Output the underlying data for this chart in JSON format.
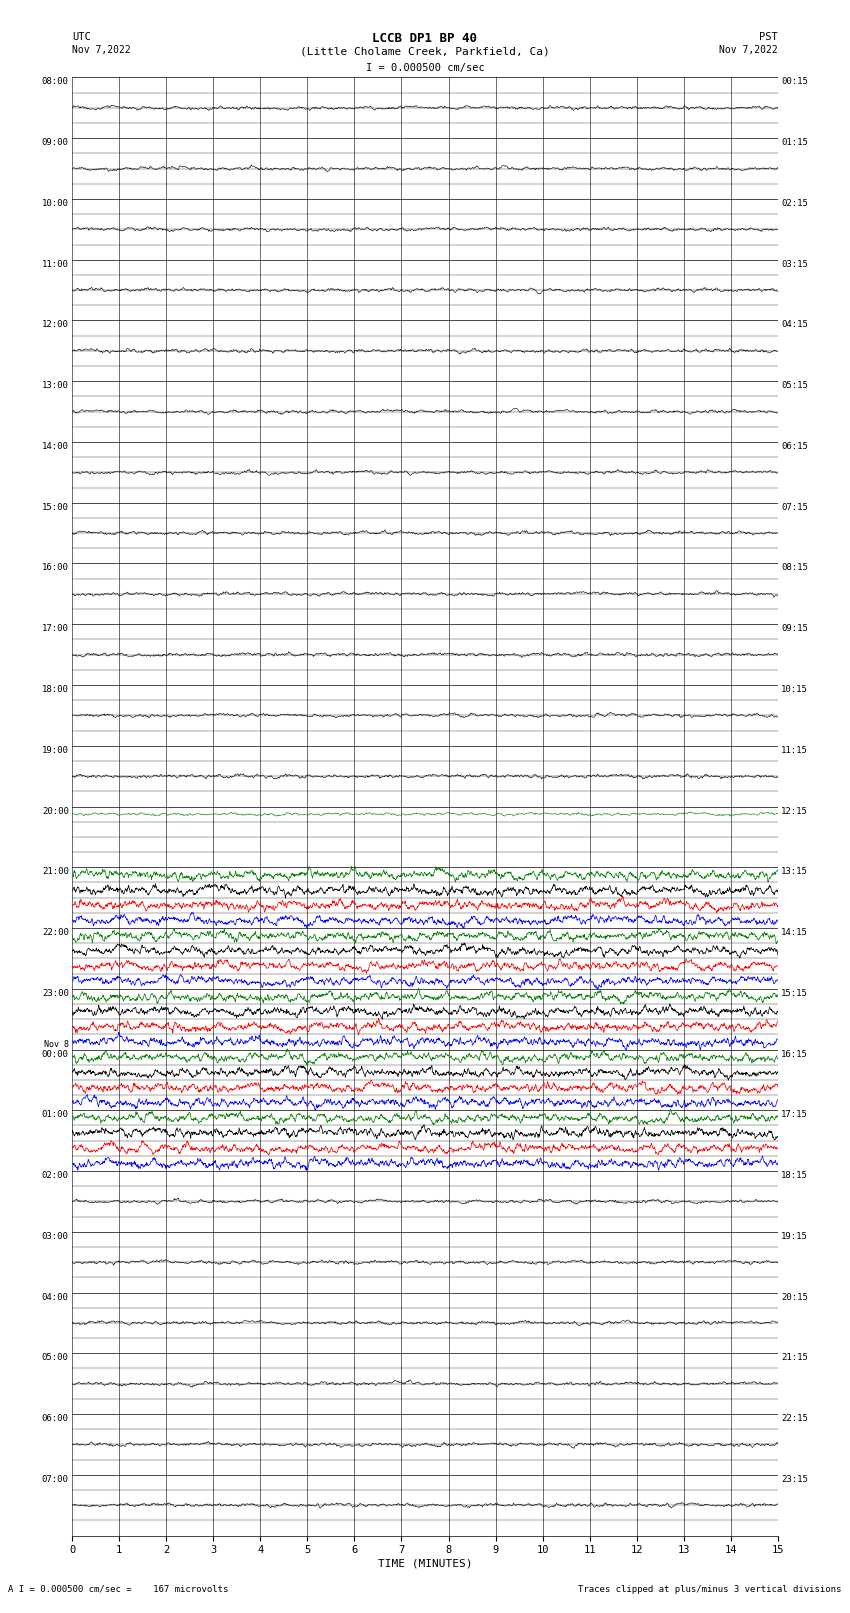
{
  "title_line1": "LCCB DP1 BP 40",
  "title_line2": "(Little Cholame Creek, Parkfield, Ca)",
  "title_line3": "I = 0.000500 cm/sec",
  "utc_header": "UTC\nNov 7,2022",
  "pst_header": "PST\nNov 7,2022",
  "xlabel": "TIME (MINUTES)",
  "footer_left": "A I = 0.000500 cm/sec =    167 microvolts",
  "footer_right": "Traces clipped at plus/minus 3 vertical divisions",
  "utc_labels": [
    "08:00",
    "09:00",
    "10:00",
    "11:00",
    "12:00",
    "13:00",
    "14:00",
    "15:00",
    "16:00",
    "17:00",
    "18:00",
    "19:00",
    "20:00",
    "21:00",
    "22:00",
    "23:00",
    "Nov 8\n00:00",
    "01:00",
    "02:00",
    "03:00",
    "04:00",
    "05:00",
    "06:00",
    "07:00"
  ],
  "pst_labels": [
    "00:15",
    "01:15",
    "02:15",
    "03:15",
    "04:15",
    "05:15",
    "06:15",
    "07:15",
    "08:15",
    "09:15",
    "10:15",
    "11:15",
    "12:15",
    "13:15",
    "14:15",
    "15:15",
    "16:15",
    "17:15",
    "18:15",
    "19:15",
    "20:15",
    "21:15",
    "22:15",
    "23:15"
  ],
  "n_hours": 24,
  "n_subrows": 4,
  "active_hours": [
    13,
    14,
    15,
    16,
    17
  ],
  "pre_active_hour": 12,
  "bg_color": "#ffffff",
  "trace_colors_active": [
    "#008000",
    "#000000",
    "#ff0000",
    "#0000ff"
  ],
  "trace_color_quiet": "#000000",
  "amp_quiet": 0.06,
  "amp_active": 0.28,
  "time_minutes": 15,
  "n_pts": 2000
}
